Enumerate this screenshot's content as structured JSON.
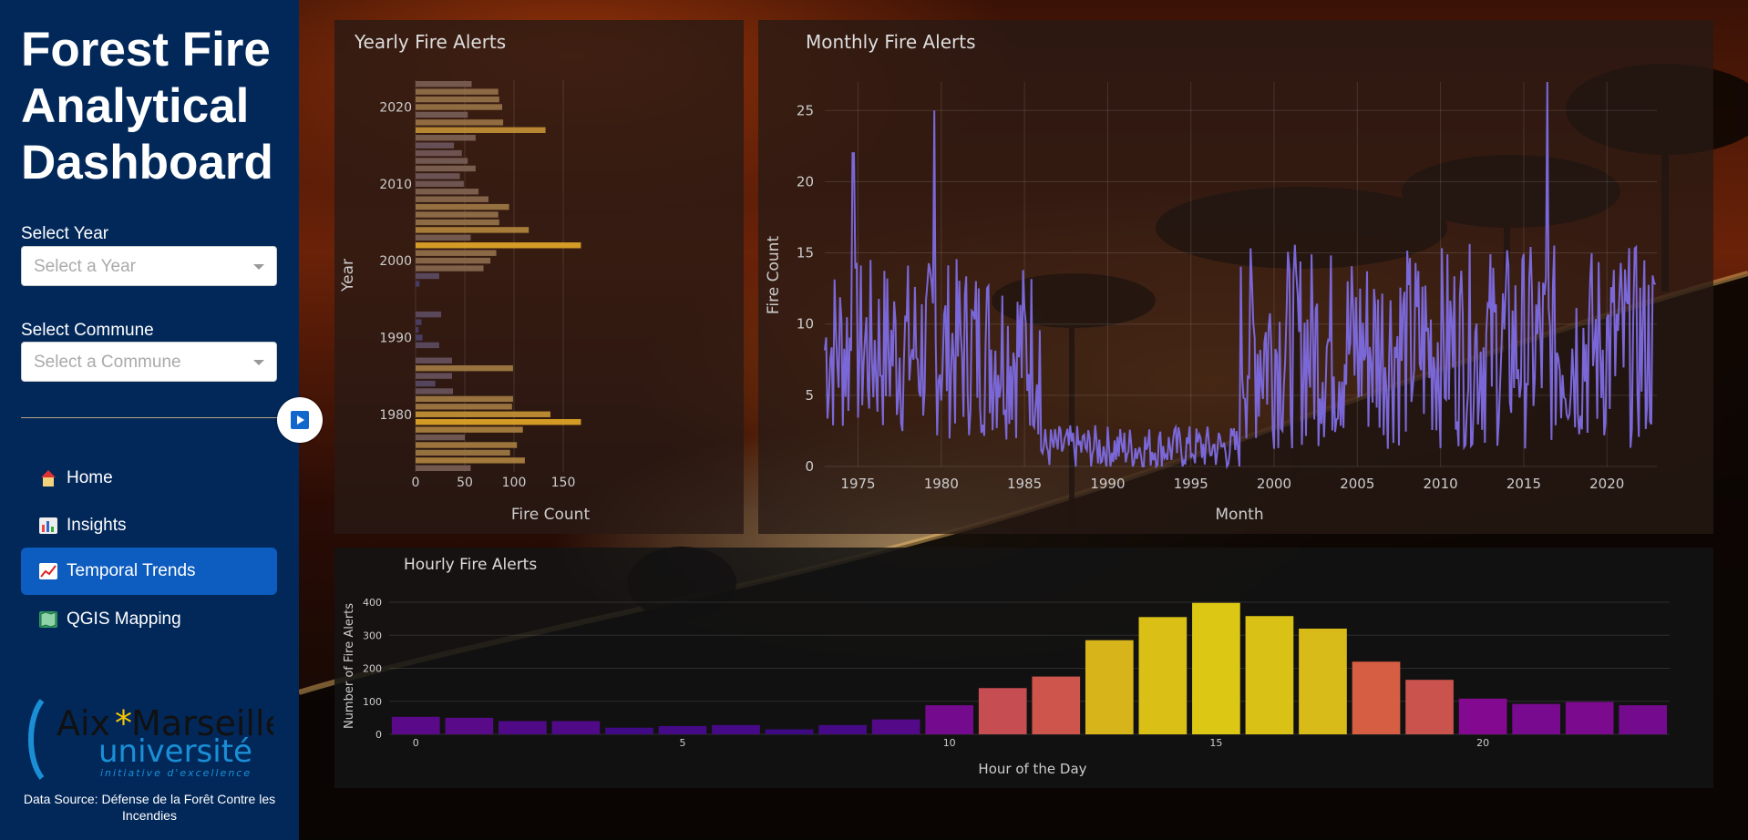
{
  "sidebar": {
    "title": "Forest Fire Analytical Dashboard",
    "year_label": "Select Year",
    "year_placeholder": "Select a Year",
    "commune_label": "Select Commune",
    "commune_placeholder": "Select a Commune",
    "nav": [
      {
        "label": "Home",
        "icon": "home-icon"
      },
      {
        "label": "Insights",
        "icon": "bar-chart-icon"
      },
      {
        "label": "Temporal Trends",
        "icon": "trend-chart-icon",
        "active": true
      },
      {
        "label": "QGIS Mapping",
        "icon": "map-icon"
      }
    ],
    "logo": {
      "line1": "Aix*Marseille",
      "line2": "université",
      "line3": "initiative d'excellence"
    },
    "data_source": "Data Source: Défense de la Forêt Contre les Incendies"
  },
  "colors": {
    "sidebar_bg": "#02285a",
    "nav_active": "#0d5cbf",
    "line": "#7b68d8"
  },
  "chart_data": [
    {
      "type": "bar",
      "orientation": "horizontal",
      "title": "Yearly Fire Alerts",
      "xlabel": "Fire Count",
      "ylabel": "Year",
      "xlim": [
        0,
        170
      ],
      "xticks": [
        "0",
        "50",
        "100",
        "150"
      ],
      "yticks": [
        "1980",
        "1990",
        "2000",
        "2010",
        "2020"
      ],
      "years": [
        1973,
        1974,
        1975,
        1976,
        1977,
        1978,
        1979,
        1980,
        1981,
        1982,
        1983,
        1984,
        1985,
        1986,
        1987,
        1988,
        1989,
        1990,
        1991,
        1992,
        1993,
        1994,
        1995,
        1996,
        1997,
        1998,
        1999,
        2000,
        2001,
        2002,
        2003,
        2004,
        2005,
        2006,
        2007,
        2008,
        2009,
        2010,
        2011,
        2012,
        2013,
        2014,
        2015,
        2016,
        2017,
        2018,
        2019,
        2020,
        2021,
        2022,
        2023
      ],
      "values": [
        56,
        111,
        96,
        103,
        50,
        109,
        168,
        137,
        98,
        99,
        38,
        20,
        37,
        99,
        37,
        0,
        24,
        7,
        3,
        6,
        26,
        0,
        0,
        0,
        4,
        24,
        69,
        76,
        82,
        168,
        56,
        115,
        85,
        84,
        95,
        74,
        64,
        49,
        45,
        61,
        53,
        47,
        39,
        61,
        132,
        89,
        53,
        88,
        85,
        84,
        57
      ]
    },
    {
      "type": "line",
      "title": "Monthly Fire Alerts",
      "xlabel": "Month",
      "ylabel": "Fire Count",
      "xlim": [
        1973,
        2023
      ],
      "ylim": [
        0,
        27
      ],
      "xticks": [
        "1975",
        "1980",
        "1985",
        "1990",
        "1995",
        "2000",
        "2005",
        "2010",
        "2015",
        "2020"
      ],
      "yticks": [
        "0",
        "5",
        "10",
        "15",
        "20",
        "25"
      ],
      "series_seed": 7
    },
    {
      "type": "bar",
      "title": "Hourly Fire Alerts",
      "xlabel": "Hour of the Day",
      "ylabel": "Number of Fire Alerts",
      "ylim": [
        0,
        400
      ],
      "xticks": [
        "0",
        "5",
        "10",
        "15",
        "20"
      ],
      "yticks": [
        "0",
        "100",
        "200",
        "300",
        "400"
      ],
      "categories": [
        0,
        1,
        2,
        3,
        4,
        5,
        6,
        7,
        8,
        9,
        10,
        11,
        12,
        13,
        14,
        15,
        16,
        17,
        18,
        19,
        20,
        21,
        22,
        23
      ],
      "values": [
        53,
        50,
        40,
        40,
        20,
        25,
        28,
        15,
        28,
        45,
        88,
        140,
        175,
        285,
        355,
        398,
        358,
        320,
        220,
        165,
        108,
        92,
        98,
        88
      ]
    }
  ]
}
